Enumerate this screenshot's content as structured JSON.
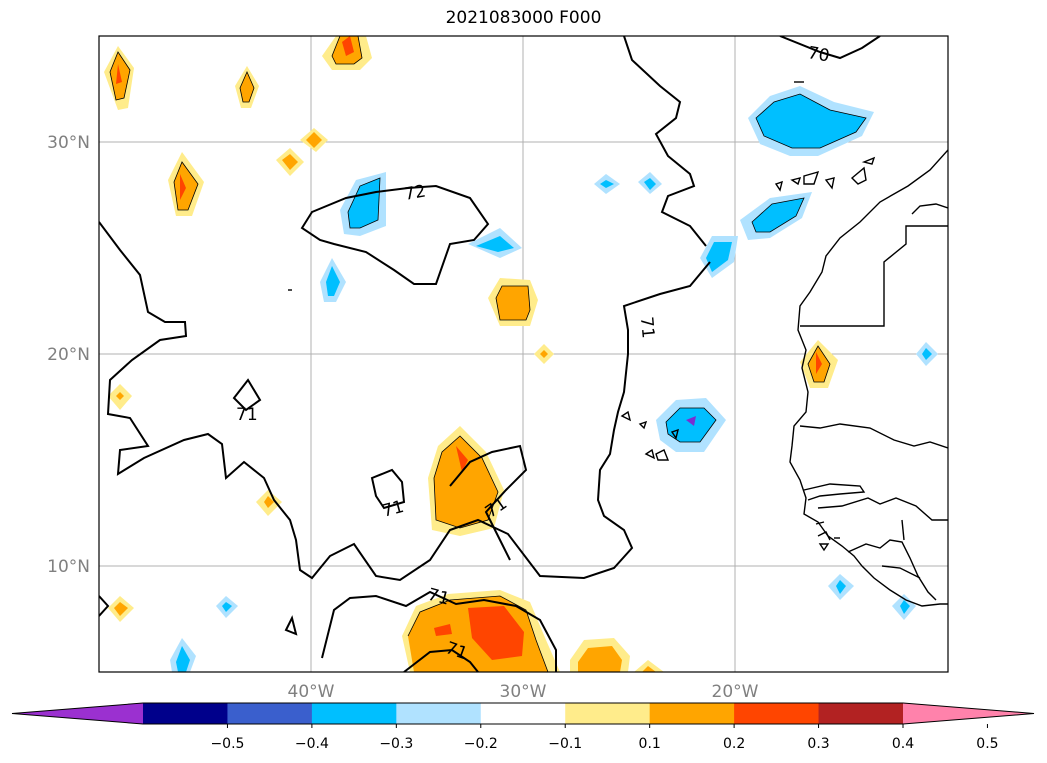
{
  "title": "2021083000 F000",
  "axes": {
    "lon_labels": [
      "40°W",
      "30°W",
      "20°W"
    ],
    "lat_labels": [
      "30°N",
      "20°N",
      "10°N"
    ],
    "lon_values": [
      -40,
      -30,
      -20
    ],
    "lat_values": [
      30,
      20,
      10
    ]
  },
  "contour_labels": [
    "70",
    "72",
    "71",
    "71",
    "71",
    "71",
    "71",
    "71"
  ],
  "colorbar": {
    "ticks": [
      "−0.5",
      "−0.4",
      "−0.3",
      "−0.2",
      "−0.1",
      "0.1",
      "0.2",
      "0.3",
      "0.4",
      "0.5"
    ],
    "colors": [
      "#9b30d0",
      "#00008b",
      "#3a5fcd",
      "#00bfff",
      "#b0e2ff",
      "#ffffff",
      "#ffec8b",
      "#ffa500",
      "#ff4500",
      "#b22222",
      "#ff82ab"
    ]
  }
}
